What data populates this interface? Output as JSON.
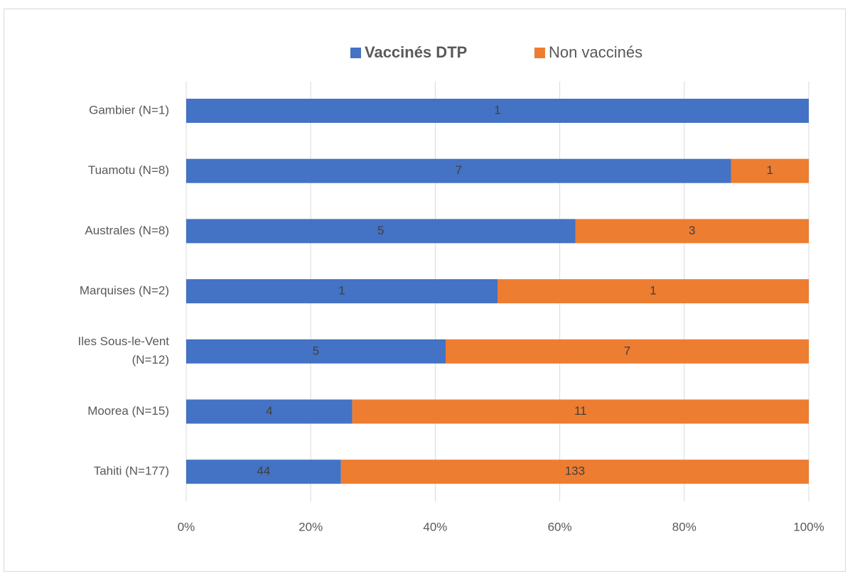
{
  "chart_data": {
    "type": "bar",
    "orientation": "horizontal",
    "stacking": "percent",
    "categories": [
      "Gambier (N=1)",
      "Tuamotu (N=8)",
      "Australes (N=8)",
      "Marquises (N=2)",
      "Iles Sous-le-Vent (N=12)",
      "Moorea (N=15)",
      "Tahiti (N=177)"
    ],
    "series": [
      {
        "name": "Vaccinés DTP",
        "color": "#4472c4",
        "values": [
          1,
          7,
          5,
          1,
          5,
          4,
          44
        ]
      },
      {
        "name": "Non vaccinés",
        "color": "#ed7d31",
        "values": [
          0,
          1,
          3,
          1,
          7,
          11,
          133
        ]
      }
    ],
    "xlim": [
      0,
      100
    ],
    "xticks": [
      {
        "value": 0,
        "label": "0%"
      },
      {
        "value": 20,
        "label": "20%"
      },
      {
        "value": 40,
        "label": "40%"
      },
      {
        "value": 60,
        "label": "60%"
      },
      {
        "value": 80,
        "label": "80%"
      },
      {
        "value": 100,
        "label": "100%"
      }
    ],
    "grid": true,
    "legend": "top"
  }
}
